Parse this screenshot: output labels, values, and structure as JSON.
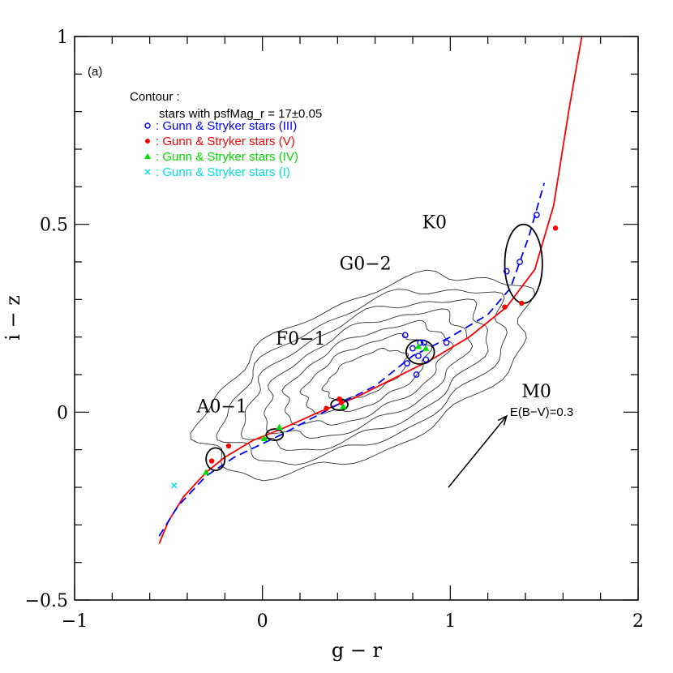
{
  "chart_data": {
    "type": "scatter",
    "panel_label": "(a)",
    "xlabel": "g − r",
    "ylabel": "i − z",
    "xlim": [
      -1,
      2
    ],
    "ylim": [
      -0.5,
      1
    ],
    "xticks": [
      -1,
      0,
      1,
      2
    ],
    "xtick_labels": [
      "−1",
      "0",
      "1",
      "2"
    ],
    "yticks": [
      -0.5,
      0,
      0.5,
      1
    ],
    "ytick_labels": [
      "−0.5",
      "0",
      "0.5",
      "1"
    ],
    "grid": false,
    "legend": {
      "placement": "top-left",
      "heading": "Contour :",
      "subheading": "stars with psfMag_r = 17±0.05",
      "entries": [
        {
          "marker": "open-circle",
          "color": "#0000ff",
          "label": ": Gunn & Stryker stars (III)"
        },
        {
          "marker": "filled-circle",
          "color": "#ff0000",
          "label": ": Gunn & Stryker stars (V)"
        },
        {
          "marker": "triangle",
          "color": "#00dd00",
          "label": ": Gunn & Stryker stars (IV)"
        },
        {
          "marker": "cross",
          "color": "#00e0e0",
          "label": ": Gunn & Stryker stars (I)"
        }
      ]
    },
    "spectral_labels": [
      {
        "text": "A0−1",
        "x": -0.35,
        "y": 0.0
      },
      {
        "text": "F0−1",
        "x": 0.07,
        "y": 0.18
      },
      {
        "text": "G0−2",
        "x": 0.41,
        "y": 0.38
      },
      {
        "text": "K0",
        "x": 0.85,
        "y": 0.49
      },
      {
        "text": "M0",
        "x": 1.38,
        "y": 0.04
      }
    ],
    "reddening_vector": {
      "label": "E(B−V)=0.3",
      "from": [
        0.99,
        -0.2
      ],
      "to": [
        1.3,
        -0.01
      ]
    },
    "series": [
      {
        "name": "Gunn & Stryker stars (III)",
        "marker": "open-circle",
        "color": "#0000ff",
        "points": [
          [
            0.76,
            0.205
          ],
          [
            0.8,
            0.17
          ],
          [
            0.84,
            0.185
          ],
          [
            0.86,
            0.185
          ],
          [
            0.83,
            0.15
          ],
          [
            0.87,
            0.14
          ],
          [
            0.82,
            0.1
          ],
          [
            0.77,
            0.13
          ],
          [
            0.98,
            0.185
          ],
          [
            1.3,
            0.375
          ],
          [
            1.37,
            0.4
          ],
          [
            1.46,
            0.525
          ]
        ]
      },
      {
        "name": "Gunn & Stryker stars (V)",
        "marker": "filled-circle",
        "color": "#ff0000",
        "points": [
          [
            -0.27,
            -0.13
          ],
          [
            -0.18,
            -0.09
          ],
          [
            0.34,
            0.01
          ],
          [
            0.42,
            0.025
          ],
          [
            0.41,
            0.035
          ],
          [
            1.29,
            0.28
          ],
          [
            1.38,
            0.29
          ],
          [
            1.56,
            0.49
          ]
        ]
      },
      {
        "name": "Gunn & Stryker stars (IV)",
        "marker": "triangle",
        "color": "#00dd00",
        "points": [
          [
            -0.3,
            -0.16
          ],
          [
            0.01,
            -0.07
          ],
          [
            0.09,
            -0.04
          ],
          [
            0.43,
            0.015
          ],
          [
            0.83,
            0.175
          ],
          [
            0.87,
            0.17
          ]
        ]
      },
      {
        "name": "Gunn & Stryker stars (I)",
        "marker": "cross",
        "color": "#00e0e0",
        "points": [
          [
            -0.47,
            -0.195
          ]
        ]
      }
    ],
    "curves": [
      {
        "style": "solid",
        "color": "#ff0000",
        "points": [
          [
            -0.55,
            -0.35
          ],
          [
            -0.5,
            -0.29
          ],
          [
            -0.42,
            -0.225
          ],
          [
            -0.3,
            -0.16
          ],
          [
            -0.2,
            -0.12
          ],
          [
            -0.05,
            -0.075
          ],
          [
            0.1,
            -0.045
          ],
          [
            0.3,
            0.0
          ],
          [
            0.5,
            0.04
          ],
          [
            0.7,
            0.09
          ],
          [
            0.9,
            0.14
          ],
          [
            1.1,
            0.2
          ],
          [
            1.3,
            0.28
          ],
          [
            1.45,
            0.38
          ],
          [
            1.55,
            0.55
          ],
          [
            1.63,
            0.8
          ],
          [
            1.7,
            1.0
          ]
        ]
      },
      {
        "style": "dashed",
        "color": "#0000ff",
        "points": [
          [
            -0.55,
            -0.33
          ],
          [
            -0.45,
            -0.25
          ],
          [
            -0.3,
            -0.17
          ],
          [
            -0.15,
            -0.12
          ],
          [
            0.1,
            -0.06
          ],
          [
            0.4,
            0.02
          ],
          [
            0.6,
            0.07
          ],
          [
            0.8,
            0.15
          ],
          [
            1.0,
            0.2
          ],
          [
            1.2,
            0.26
          ],
          [
            1.32,
            0.33
          ],
          [
            1.42,
            0.47
          ],
          [
            1.5,
            0.61
          ]
        ]
      }
    ],
    "ellipses": [
      {
        "cx": -0.25,
        "cy": -0.125,
        "rx": 0.05,
        "ry": 0.03
      },
      {
        "cx": 0.065,
        "cy": -0.06,
        "rx": 0.045,
        "ry": 0.015
      },
      {
        "cx": 0.41,
        "cy": 0.02,
        "rx": 0.045,
        "ry": 0.015
      },
      {
        "cx": 0.84,
        "cy": 0.16,
        "rx": 0.075,
        "ry": 0.032
      },
      {
        "cx": 1.39,
        "cy": 0.395,
        "rx": 0.1,
        "ry": 0.105
      }
    ],
    "contours": {
      "center": [
        0.55,
        0.1
      ],
      "levels": [
        0.25,
        0.38,
        0.5,
        0.62,
        0.74,
        0.86,
        1.0
      ]
    }
  }
}
